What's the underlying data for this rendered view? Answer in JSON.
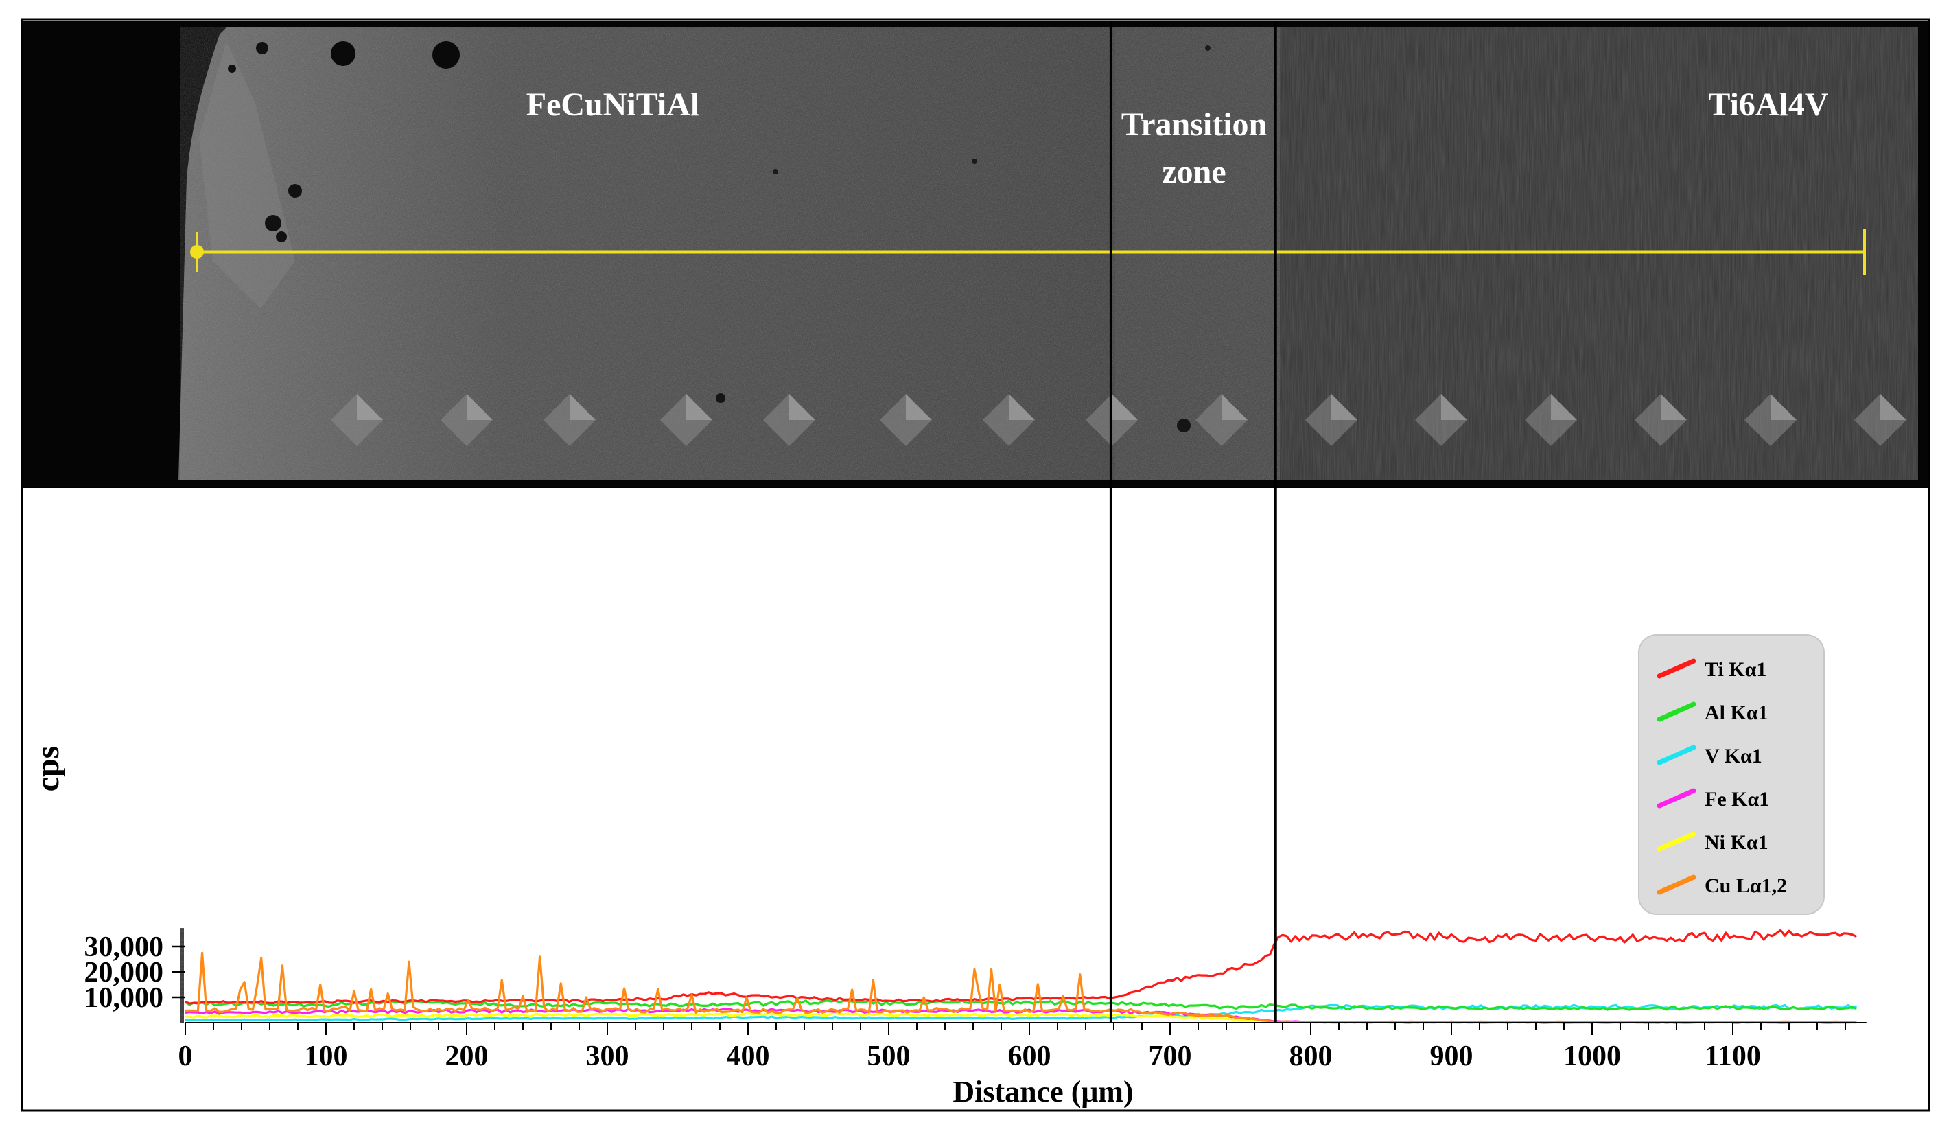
{
  "colors": {
    "Ti": "#ff1a1a",
    "Al": "#22e022",
    "V": "#1ee3f0",
    "Fe": "#ff22ee",
    "Ni": "#ffff1a",
    "Cu": "#ff8a14",
    "scan_line": "#f0e020",
    "micrograph_dark": "#121212",
    "legend_bg": "#dcdcdc"
  },
  "micrograph": {
    "label_left": "FeCuNiTiAl",
    "label_transition_line1": "Transition",
    "label_transition_line2": "zone",
    "label_right": "Ti6Al4V",
    "scan_line_icon": "linescan-marker-icon"
  },
  "chart_data": {
    "type": "line",
    "title": "",
    "xlabel": "Distance (μm)",
    "ylabel": "cps",
    "xlim": [
      0,
      1200
    ],
    "ylim": [
      0,
      38000
    ],
    "x_ticks": [
      0,
      100,
      200,
      300,
      400,
      500,
      600,
      700,
      800,
      900,
      1000,
      1100
    ],
    "x_tick_labels": [
      "0",
      "100",
      "200",
      "300",
      "400",
      "500",
      "600",
      "700",
      "800",
      "900",
      "1000",
      "1100"
    ],
    "y_ticks": [
      10000,
      20000,
      30000
    ],
    "y_tick_labels": [
      "10,000",
      "20,000",
      "30,000"
    ],
    "zone_boundaries_um": [
      658,
      775
    ],
    "legend_position": "right",
    "series": [
      {
        "key": "Ti",
        "name": "Ti Kα1",
        "points": [
          [
            0,
            8000
          ],
          [
            100,
            8200
          ],
          [
            200,
            8600
          ],
          [
            300,
            8800
          ],
          [
            340,
            9600
          ],
          [
            370,
            11500
          ],
          [
            410,
            10400
          ],
          [
            450,
            9500
          ],
          [
            500,
            8700
          ],
          [
            560,
            9000
          ],
          [
            620,
            9700
          ],
          [
            658,
            10000
          ],
          [
            680,
            13000
          ],
          [
            700,
            16500
          ],
          [
            720,
            18000
          ],
          [
            740,
            20500
          ],
          [
            760,
            24000
          ],
          [
            772,
            26500
          ],
          [
            775,
            33500
          ],
          [
            850,
            34500
          ],
          [
            900,
            33500
          ],
          [
            1000,
            33200
          ],
          [
            1100,
            34000
          ],
          [
            1150,
            35000
          ],
          [
            1190,
            33500
          ]
        ]
      },
      {
        "key": "Al",
        "name": "Al Kα1",
        "points": [
          [
            0,
            7500
          ],
          [
            100,
            7000
          ],
          [
            150,
            8200
          ],
          [
            200,
            7800
          ],
          [
            250,
            6800
          ],
          [
            300,
            7500
          ],
          [
            350,
            6800
          ],
          [
            400,
            7200
          ],
          [
            450,
            8300
          ],
          [
            500,
            7600
          ],
          [
            550,
            8000
          ],
          [
            600,
            7800
          ],
          [
            658,
            7800
          ],
          [
            700,
            7200
          ],
          [
            740,
            6000
          ],
          [
            760,
            6500
          ],
          [
            775,
            6800
          ],
          [
            800,
            6000
          ],
          [
            900,
            5800
          ],
          [
            1000,
            5600
          ],
          [
            1100,
            5800
          ],
          [
            1190,
            5700
          ]
        ]
      },
      {
        "key": "V",
        "name": "V Kα1",
        "points": [
          [
            0,
            1000
          ],
          [
            100,
            1200
          ],
          [
            200,
            1600
          ],
          [
            300,
            1800
          ],
          [
            400,
            2100
          ],
          [
            500,
            1900
          ],
          [
            600,
            1800
          ],
          [
            658,
            2100
          ],
          [
            700,
            2600
          ],
          [
            740,
            3500
          ],
          [
            775,
            5000
          ],
          [
            800,
            6300
          ],
          [
            900,
            6000
          ],
          [
            1000,
            6200
          ],
          [
            1100,
            6100
          ],
          [
            1190,
            6300
          ]
        ]
      },
      {
        "key": "Fe",
        "name": "Fe Kα1",
        "points": [
          [
            0,
            3800
          ],
          [
            100,
            4200
          ],
          [
            200,
            4500
          ],
          [
            300,
            4800
          ],
          [
            400,
            4800
          ],
          [
            500,
            4500
          ],
          [
            600,
            4600
          ],
          [
            658,
            4500
          ],
          [
            700,
            3800
          ],
          [
            740,
            2500
          ],
          [
            775,
            600
          ],
          [
            800,
            200
          ],
          [
            1000,
            100
          ],
          [
            1190,
            100
          ]
        ]
      },
      {
        "key": "Ni",
        "name": "Ni Kα1",
        "points": [
          [
            0,
            2500
          ],
          [
            100,
            2700
          ],
          [
            200,
            2900
          ],
          [
            300,
            3100
          ],
          [
            400,
            3200
          ],
          [
            500,
            3100
          ],
          [
            600,
            3000
          ],
          [
            658,
            3000
          ],
          [
            700,
            2300
          ],
          [
            740,
            1700
          ],
          [
            775,
            400
          ],
          [
            800,
            150
          ],
          [
            1000,
            80
          ],
          [
            1190,
            80
          ]
        ]
      },
      {
        "key": "Cu",
        "name": "Cu Lα1,2",
        "baseline": [
          [
            0,
            5000
          ],
          [
            200,
            5500
          ],
          [
            400,
            4500
          ],
          [
            600,
            5000
          ],
          [
            658,
            5000
          ],
          [
            700,
            3500
          ],
          [
            740,
            2600
          ],
          [
            775,
            400
          ],
          [
            790,
            300
          ],
          [
            1190,
            300
          ]
        ],
        "spikes": [
          [
            12,
            27500
          ],
          [
            38,
            13000
          ],
          [
            43,
            16000
          ],
          [
            52,
            14500
          ],
          [
            55,
            25500
          ],
          [
            70,
            22500
          ],
          [
            95,
            15000
          ],
          [
            120,
            12500
          ],
          [
            133,
            13200
          ],
          [
            145,
            11500
          ],
          [
            160,
            24000
          ],
          [
            200,
            9000
          ],
          [
            225,
            16800
          ],
          [
            240,
            10500
          ],
          [
            253,
            26000
          ],
          [
            268,
            15500
          ],
          [
            285,
            10000
          ],
          [
            312,
            13500
          ],
          [
            335,
            13200
          ],
          [
            360,
            11000
          ],
          [
            400,
            10000
          ],
          [
            435,
            9800
          ],
          [
            475,
            13000
          ],
          [
            490,
            16800
          ],
          [
            525,
            10000
          ],
          [
            560,
            21000
          ],
          [
            565,
            12000
          ],
          [
            572,
            21000
          ],
          [
            578,
            15000
          ],
          [
            605,
            15200
          ],
          [
            625,
            10500
          ],
          [
            635,
            19000
          ]
        ]
      }
    ]
  }
}
